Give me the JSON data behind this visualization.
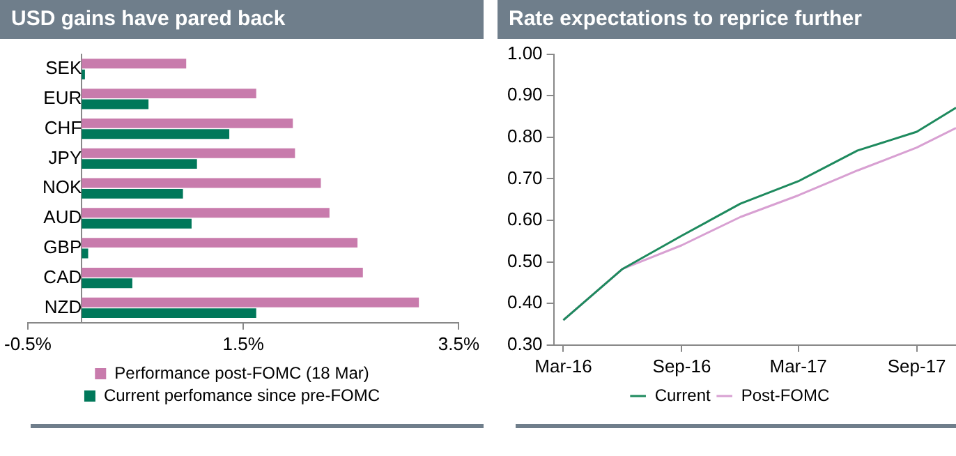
{
  "chart_data": [
    {
      "type": "bar",
      "title": "USD gains have pared back",
      "orientation": "horizontal",
      "categories": [
        "SEK",
        "EUR",
        "CHF",
        "JPY",
        "NOK",
        "AUD",
        "GBP",
        "CAD",
        "NZD"
      ],
      "series": [
        {
          "name": "Performance post-FOMC (18 Mar)",
          "color": "#c87bac",
          "values": [
            0.97,
            1.62,
            1.96,
            1.98,
            2.22,
            2.3,
            2.56,
            2.61,
            3.13
          ]
        },
        {
          "name": "Current perfomance since pre-FOMC",
          "color": "#00785a",
          "values": [
            0.03,
            0.62,
            1.37,
            1.07,
            0.94,
            1.02,
            0.06,
            0.47,
            1.62
          ]
        }
      ],
      "xlim": [
        -0.5,
        3.5
      ],
      "xticks": [
        {
          "value": -0.5,
          "label": "-0.5%"
        },
        {
          "value": 1.5,
          "label": "1.5%"
        },
        {
          "value": 3.5,
          "label": "3.5%"
        }
      ],
      "grid": false,
      "legend": "bottom"
    },
    {
      "type": "line",
      "title": "Rate expectations to reprice further",
      "x": [
        "2016-03",
        "2016-06",
        "2016-09",
        "2016-12",
        "2017-03",
        "2017-06",
        "2017-09",
        "2017-11"
      ],
      "series": [
        {
          "name": "Current",
          "color": "#1e8a5e",
          "values": [
            0.36,
            0.483,
            0.563,
            0.64,
            0.694,
            0.768,
            0.813,
            0.871
          ]
        },
        {
          "name": "Post-FOMC",
          "color": "#d8a0d2",
          "values": [
            0.36,
            0.483,
            0.54,
            0.608,
            0.66,
            0.72,
            0.775,
            0.822
          ]
        }
      ],
      "xlim": [
        "2016-02-15",
        "2017-11"
      ],
      "xticks": [
        {
          "value": "2016-03",
          "label": "Mar-16"
        },
        {
          "value": "2016-09",
          "label": "Sep-16"
        },
        {
          "value": "2017-03",
          "label": "Mar-17"
        },
        {
          "value": "2017-09",
          "label": "Sep-17"
        }
      ],
      "ylim": [
        0.3,
        1.0
      ],
      "yticks": [
        {
          "value": 0.3,
          "label": "0.30"
        },
        {
          "value": 0.4,
          "label": "0.40"
        },
        {
          "value": 0.5,
          "label": "0.50"
        },
        {
          "value": 0.6,
          "label": "0.60"
        },
        {
          "value": 0.7,
          "label": "0.70"
        },
        {
          "value": 0.8,
          "label": "0.80"
        },
        {
          "value": 0.9,
          "label": "0.90"
        },
        {
          "value": 1.0,
          "label": "1.00"
        }
      ],
      "grid": false,
      "legend": "bottom"
    }
  ]
}
